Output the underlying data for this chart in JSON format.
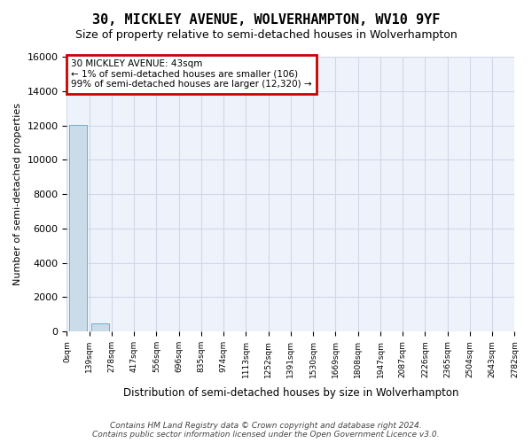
{
  "title_line1": "30, MICKLEY AVENUE, WOLVERHAMPTON, WV10 9YF",
  "title_line2": "Size of property relative to semi-detached houses in Wolverhampton",
  "xlabel": "Distribution of semi-detached houses by size in Wolverhampton",
  "ylabel": "Number of semi-detached properties",
  "bar_color": "#c9dce8",
  "bar_edge_color": "#6baed6",
  "annotation_box_color": "#cc0000",
  "annotation_lines": [
    "30 MICKLEY AVENUE: 43sqm",
    "← 1% of semi-detached houses are smaller (106)",
    "99% of semi-detached houses are larger (12,320) →"
  ],
  "tick_labels": [
    "0sqm",
    "139sqm",
    "278sqm",
    "417sqm",
    "556sqm",
    "696sqm",
    "835sqm",
    "974sqm",
    "1113sqm",
    "1252sqm",
    "1391sqm",
    "1530sqm",
    "1669sqm",
    "1808sqm",
    "1947sqm",
    "2087sqm",
    "2226sqm",
    "2365sqm",
    "2504sqm",
    "2643sqm",
    "2782sqm"
  ],
  "bar_heights": [
    12050,
    450,
    0,
    0,
    0,
    0,
    0,
    0,
    0,
    0,
    0,
    0,
    0,
    0,
    0,
    0,
    0,
    0,
    0,
    0
  ],
  "ylim": [
    0,
    16000
  ],
  "yticks": [
    0,
    2000,
    4000,
    6000,
    8000,
    10000,
    12000,
    14000,
    16000
  ],
  "grid_color": "#d0d8e8",
  "bg_color": "#eef2fa",
  "footer_line1": "Contains HM Land Registry data © Crown copyright and database right 2024.",
  "footer_line2": "Contains public sector information licensed under the Open Government Licence v3.0."
}
